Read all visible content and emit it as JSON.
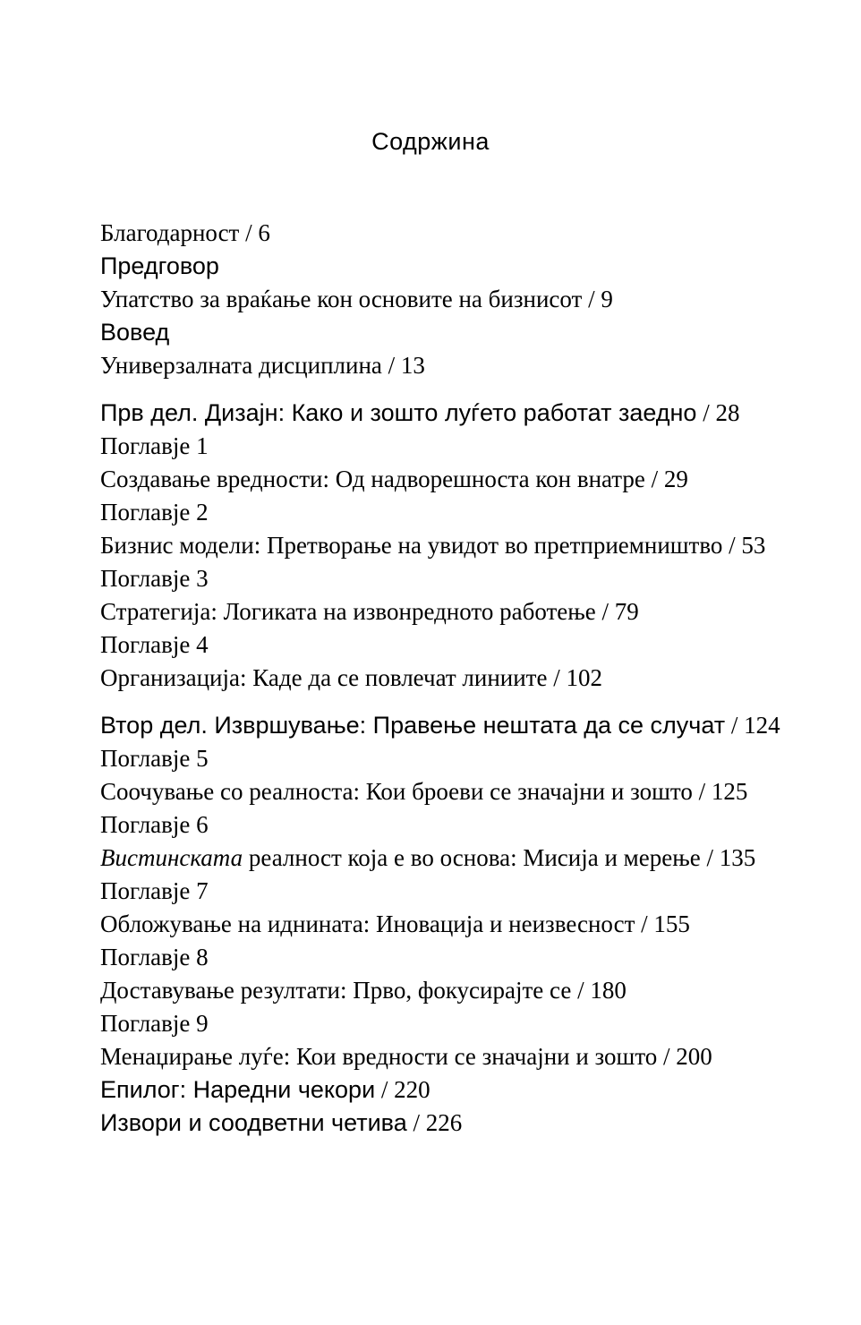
{
  "page": {
    "title": "Содржина",
    "background_color": "#ffffff",
    "text_color": "#000000"
  },
  "toc": {
    "separator": " / ",
    "entries": [
      {
        "style": "serif",
        "text": "Благодарност",
        "page": "6"
      },
      {
        "style": "sans",
        "text": "Предговор",
        "page": null
      },
      {
        "style": "serif",
        "text": "Упатство за враќање кон основите на бизнисот",
        "page": "9"
      },
      {
        "style": "sans",
        "text": "Вовед",
        "page": null
      },
      {
        "style": "serif",
        "text": "Универзалната дисциплина",
        "page": "13"
      },
      {
        "style": "sans-header",
        "gap_before": true,
        "text": "Прв дел. Дизајн: Како и зошто луѓето работат заедно",
        "page": "28"
      },
      {
        "style": "serif",
        "text": "Поглавје 1",
        "page": null
      },
      {
        "style": "serif",
        "text": "Создавање вредности: Од надворешноста кон внатре",
        "page": "29"
      },
      {
        "style": "serif",
        "text": "Поглавје 2",
        "page": null
      },
      {
        "style": "serif",
        "text": "Бизнис модели: Претворање на увидот во претприемништво",
        "page": "53"
      },
      {
        "style": "serif",
        "text": "Поглавје 3",
        "page": null
      },
      {
        "style": "serif",
        "text": "Стратегија: Логиката на извонредното работење",
        "page": "79"
      },
      {
        "style": "serif",
        "text": "Поглавје 4",
        "page": null
      },
      {
        "style": "serif",
        "text": "Организација: Каде да се повлечат линиите",
        "page": "102"
      },
      {
        "style": "sans-header",
        "gap_before": true,
        "text": "Втор дел. Извршување: Правење нештата да се случат",
        "page": "124"
      },
      {
        "style": "serif",
        "text": "Поглавје 5",
        "page": null
      },
      {
        "style": "serif",
        "text": "Соочување со реалноста: Кои броеви се значајни и зошто",
        "page": "125"
      },
      {
        "style": "serif",
        "text": "Поглавје 6",
        "page": null
      },
      {
        "style": "serif",
        "lead_italic": "Вистинската",
        "text": " реалност која е во основа: Мисија и мерење",
        "page": "135"
      },
      {
        "style": "serif",
        "text": "Поглавје 7",
        "page": null
      },
      {
        "style": "serif",
        "text": "Обложување на иднината: Иновација и неизвесност",
        "page": "155"
      },
      {
        "style": "serif",
        "text": "Поглавје 8",
        "page": null
      },
      {
        "style": "serif",
        "text": "Доставување резултати: Прво, фокусирајте се",
        "page": "180"
      },
      {
        "style": "serif",
        "text": "Поглавје 9",
        "page": null
      },
      {
        "style": "serif",
        "text": "Менаџирање луѓе: Кои вредности се значајни и зошто",
        "page": "200"
      },
      {
        "style": "sans",
        "text": "Епилог: Наредни чекори",
        "page": "220"
      },
      {
        "style": "sans",
        "text": "Извори и соодветни четива",
        "page": "226"
      }
    ]
  }
}
